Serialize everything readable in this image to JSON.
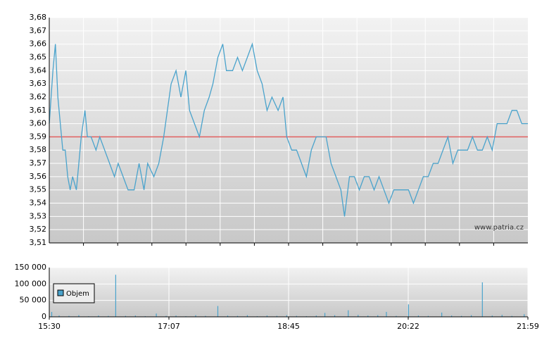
{
  "chart_data": [
    {
      "type": "line",
      "color": "#4aa3cc",
      "reference_line": 3.59,
      "reference_color": "#e06060",
      "watermark": "www.patria.cz",
      "xlim": [
        0,
        389
      ],
      "ylim": [
        3.51,
        3.68
      ],
      "xgrid": [
        27.8,
        55.6,
        83.4,
        111.1,
        138.9,
        166.7,
        194.5,
        222.3,
        250.1,
        277.9,
        305.6,
        333.4,
        361.2
      ],
      "yticks": [
        {
          "value": 3.51,
          "label": "3,51"
        },
        {
          "value": 3.52,
          "label": "3,52"
        },
        {
          "value": 3.53,
          "label": "3,53"
        },
        {
          "value": 3.54,
          "label": "3,54"
        },
        {
          "value": 3.55,
          "label": "3,55"
        },
        {
          "value": 3.56,
          "label": "3,56"
        },
        {
          "value": 3.57,
          "label": "3,57"
        },
        {
          "value": 3.58,
          "label": "3,58"
        },
        {
          "value": 3.59,
          "label": "3,59"
        },
        {
          "value": 3.6,
          "label": "3,60"
        },
        {
          "value": 3.61,
          "label": "3,61"
        },
        {
          "value": 3.62,
          "label": "3,62"
        },
        {
          "value": 3.63,
          "label": "3,63"
        },
        {
          "value": 3.64,
          "label": "3,64"
        },
        {
          "value": 3.65,
          "label": "3,65"
        },
        {
          "value": 3.66,
          "label": "3,66"
        },
        {
          "value": 3.67,
          "label": "3,67"
        },
        {
          "value": 3.68,
          "label": "3,68"
        }
      ],
      "x": [
        0,
        3,
        5,
        7,
        9,
        11,
        13,
        15,
        17,
        19,
        22,
        24,
        26,
        29,
        31,
        34,
        38,
        41,
        45,
        49,
        53,
        56,
        60,
        64,
        69,
        73,
        77,
        80,
        85,
        89,
        93,
        96,
        99,
        103,
        107,
        111,
        114,
        118,
        122,
        126,
        130,
        133,
        137,
        141,
        144,
        149,
        153,
        157,
        161,
        165,
        169,
        173,
        177,
        181,
        186,
        190,
        193,
        197,
        201,
        205,
        209,
        213,
        217,
        221,
        225,
        229,
        233,
        237,
        240,
        244,
        248,
        252,
        256,
        260,
        264,
        268,
        272,
        276,
        280,
        284,
        288,
        292,
        296,
        300,
        304,
        308,
        312,
        316,
        320,
        324,
        328,
        332,
        336,
        340,
        344,
        348,
        352,
        356,
        360,
        364,
        368,
        372,
        376,
        380,
        384,
        388,
        389
      ],
      "values": [
        3.6,
        3.64,
        3.66,
        3.62,
        3.6,
        3.58,
        3.58,
        3.56,
        3.55,
        3.56,
        3.55,
        3.57,
        3.59,
        3.61,
        3.59,
        3.59,
        3.58,
        3.59,
        3.58,
        3.57,
        3.56,
        3.57,
        3.56,
        3.55,
        3.55,
        3.57,
        3.55,
        3.57,
        3.56,
        3.57,
        3.59,
        3.61,
        3.63,
        3.64,
        3.62,
        3.64,
        3.61,
        3.6,
        3.59,
        3.61,
        3.62,
        3.63,
        3.65,
        3.66,
        3.64,
        3.64,
        3.65,
        3.64,
        3.65,
        3.66,
        3.64,
        3.63,
        3.61,
        3.62,
        3.61,
        3.62,
        3.59,
        3.58,
        3.58,
        3.57,
        3.56,
        3.58,
        3.59,
        3.59,
        3.59,
        3.57,
        3.56,
        3.55,
        3.53,
        3.56,
        3.56,
        3.55,
        3.56,
        3.56,
        3.55,
        3.56,
        3.55,
        3.54,
        3.55,
        3.55,
        3.55,
        3.55,
        3.54,
        3.55,
        3.56,
        3.56,
        3.57,
        3.57,
        3.58,
        3.59,
        3.57,
        3.58,
        3.58,
        3.58,
        3.59,
        3.58,
        3.58,
        3.59,
        3.58,
        3.6,
        3.6,
        3.6,
        3.61,
        3.61,
        3.6,
        3.6,
        3.6
      ]
    },
    {
      "type": "bar",
      "xlim": [
        0,
        389
      ],
      "ylim": [
        0,
        150000
      ],
      "xticks": [
        {
          "value": 0,
          "label": "15:30"
        },
        {
          "value": 97.25,
          "label": "17:07"
        },
        {
          "value": 194.5,
          "label": "18:45"
        },
        {
          "value": 291.75,
          "label": "20:22"
        },
        {
          "value": 389,
          "label": "21:59"
        }
      ],
      "yticks": [
        {
          "value": 0,
          "label": "0"
        },
        {
          "value": 50000,
          "label": "50 000"
        },
        {
          "value": 100000,
          "label": "100 000"
        },
        {
          "value": 150000,
          "label": "150 000"
        }
      ],
      "x": [
        2,
        8,
        16,
        24,
        32,
        40,
        48,
        54,
        62,
        70,
        78,
        87,
        95,
        103,
        111,
        119,
        127,
        137,
        145,
        153,
        161,
        169,
        177,
        185,
        193,
        201,
        209,
        217,
        224,
        232,
        243,
        251,
        259,
        267,
        274,
        282,
        292,
        300,
        308,
        319,
        327,
        335,
        343,
        352,
        360,
        368,
        376,
        386
      ],
      "series": [
        {
          "name": "Objem",
          "color": "#4aa3cc",
          "values": [
            15000,
            4000,
            3000,
            5000,
            2000,
            4000,
            3000,
            128000,
            3000,
            4000,
            2000,
            10000,
            3000,
            4000,
            2000,
            5000,
            3000,
            33000,
            4000,
            3000,
            5000,
            2000,
            4000,
            3000,
            5000,
            3000,
            2000,
            4000,
            12000,
            5000,
            20000,
            6000,
            4000,
            5000,
            15000,
            3000,
            38000,
            4000,
            3000,
            13000,
            4000,
            3000,
            5000,
            105000,
            4000,
            6000,
            3000,
            8000
          ]
        }
      ]
    }
  ]
}
